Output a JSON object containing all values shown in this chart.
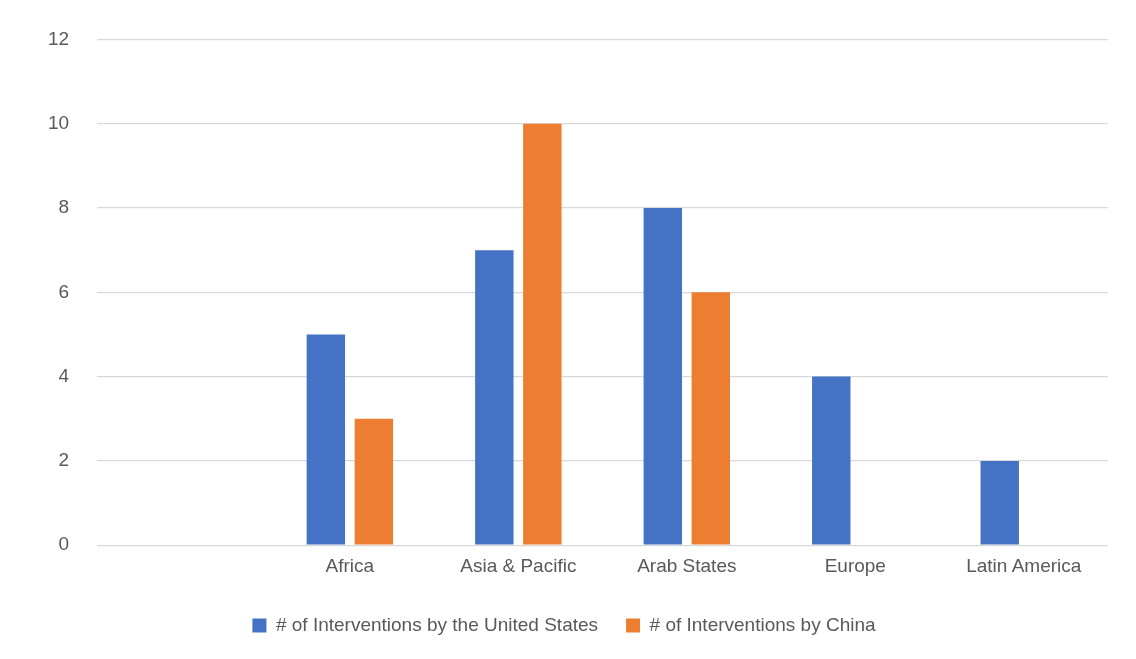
{
  "chart_data": {
    "type": "bar",
    "categories": [
      null,
      "Africa",
      "Asia & Pacific",
      "Arab States",
      "Europe",
      "Latin America"
    ],
    "series": [
      {
        "name": "# of Interventions by the United States",
        "color": "#4472c4",
        "values": [
          null,
          5,
          7,
          8,
          4,
          2
        ]
      },
      {
        "name": "# of Interventions by China",
        "color": "#ed7d31",
        "values": [
          null,
          3,
          10,
          6,
          null,
          null
        ]
      }
    ],
    "ylim": [
      0,
      12
    ],
    "yticks": [
      0,
      2,
      4,
      6,
      8,
      10,
      12
    ],
    "grid": "y",
    "legend": "bottom"
  }
}
